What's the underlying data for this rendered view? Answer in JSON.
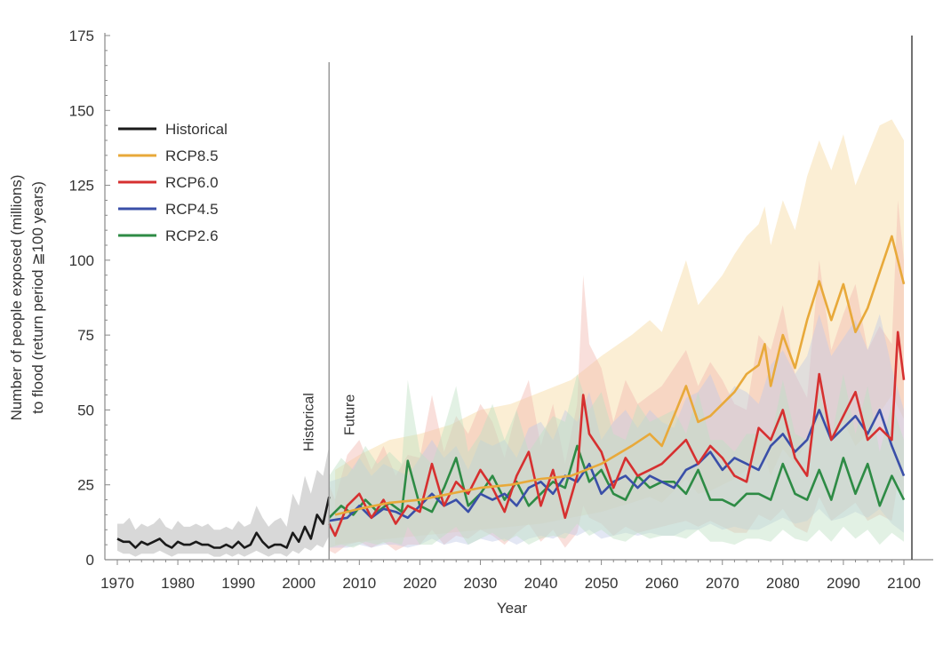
{
  "chart_data": {
    "type": "line",
    "xlabel": "Year",
    "ylabel_line1": "Number of people exposed (millions)",
    "ylabel_line2": "to flood (return period ≧100 years)",
    "xlim": [
      1970,
      2100
    ],
    "ylim": [
      0,
      175
    ],
    "xticks": [
      "1970",
      "1980",
      "1990",
      "2000",
      "2010",
      "2020",
      "2030",
      "2040",
      "2050",
      "2060",
      "2070",
      "2080",
      "2090",
      "2100"
    ],
    "yticks": [
      "0",
      "25",
      "50",
      "75",
      "100",
      "125",
      "150",
      "175"
    ],
    "divider_year": 2005,
    "period_labels": {
      "historical": "Historical",
      "future": "Future"
    },
    "legend_position": "upper-left",
    "series": [
      {
        "name": "Historical",
        "color": "#1a1a1a",
        "band_color": "#c8c8c8",
        "x": [
          1970,
          1971,
          1972,
          1973,
          1974,
          1975,
          1976,
          1977,
          1978,
          1979,
          1980,
          1981,
          1982,
          1983,
          1984,
          1985,
          1986,
          1987,
          1988,
          1989,
          1990,
          1991,
          1992,
          1993,
          1994,
          1995,
          1996,
          1997,
          1998,
          1999,
          2000,
          2001,
          2002,
          2003,
          2004,
          2005
        ],
        "y": [
          7,
          6,
          6,
          4,
          6,
          5,
          6,
          7,
          5,
          4,
          6,
          5,
          5,
          6,
          5,
          5,
          4,
          4,
          5,
          4,
          6,
          4,
          5,
          9,
          6,
          4,
          5,
          5,
          4,
          9,
          6,
          11,
          7,
          15,
          12,
          21
        ],
        "lower": [
          3,
          2,
          2,
          1,
          2,
          2,
          2,
          3,
          2,
          1,
          2,
          2,
          2,
          2,
          2,
          2,
          1,
          1,
          2,
          1,
          2,
          1,
          2,
          3,
          2,
          1,
          2,
          2,
          1,
          3,
          2,
          4,
          3,
          5,
          4,
          8
        ],
        "upper": [
          12,
          12,
          14,
          10,
          12,
          11,
          12,
          14,
          11,
          10,
          13,
          11,
          11,
          12,
          11,
          12,
          10,
          10,
          11,
          10,
          13,
          11,
          12,
          18,
          14,
          11,
          13,
          14,
          11,
          22,
          18,
          28,
          22,
          30,
          28,
          38
        ]
      },
      {
        "name": "RCP8.5",
        "color": "#e8a93a",
        "band_color": "#f7d9a0",
        "x": [
          2006,
          2010,
          2015,
          2020,
          2025,
          2030,
          2035,
          2040,
          2045,
          2050,
          2055,
          2058,
          2060,
          2062,
          2064,
          2066,
          2068,
          2070,
          2072,
          2074,
          2076,
          2077,
          2078,
          2080,
          2082,
          2084,
          2086,
          2088,
          2090,
          2092,
          2094,
          2096,
          2098,
          2100
        ],
        "y": [
          15,
          17,
          19,
          20,
          22,
          24,
          25,
          27,
          28,
          32,
          38,
          42,
          38,
          48,
          58,
          46,
          48,
          52,
          56,
          62,
          65,
          72,
          58,
          75,
          64,
          80,
          93,
          80,
          92,
          76,
          84,
          96,
          108,
          92
        ],
        "lower": [
          5,
          6,
          7,
          8,
          9,
          10,
          11,
          12,
          14,
          16,
          19,
          21,
          19,
          23,
          27,
          22,
          23,
          25,
          27,
          30,
          32,
          35,
          28,
          37,
          32,
          40,
          47,
          40,
          46,
          38,
          42,
          49,
          55,
          47
        ],
        "upper": [
          30,
          35,
          40,
          42,
          45,
          50,
          52,
          56,
          60,
          68,
          75,
          80,
          76,
          88,
          100,
          85,
          90,
          95,
          102,
          108,
          112,
          118,
          105,
          120,
          110,
          128,
          140,
          130,
          142,
          125,
          135,
          145,
          147,
          140
        ]
      },
      {
        "name": "RCP6.0",
        "color": "#d63030",
        "band_color": "#f1b9b0",
        "x": [
          2005,
          2006,
          2008,
          2010,
          2012,
          2014,
          2016,
          2018,
          2020,
          2022,
          2024,
          2026,
          2028,
          2030,
          2032,
          2034,
          2036,
          2038,
          2040,
          2042,
          2044,
          2046,
          2047,
          2048,
          2050,
          2052,
          2054,
          2056,
          2058,
          2060,
          2062,
          2064,
          2066,
          2068,
          2070,
          2072,
          2074,
          2076,
          2078,
          2080,
          2082,
          2084,
          2086,
          2088,
          2090,
          2092,
          2094,
          2096,
          2098,
          2099,
          2100
        ],
        "y": [
          12,
          8,
          18,
          22,
          14,
          20,
          12,
          18,
          16,
          32,
          18,
          26,
          22,
          30,
          24,
          16,
          28,
          36,
          18,
          30,
          14,
          28,
          55,
          42,
          36,
          24,
          34,
          28,
          30,
          32,
          36,
          40,
          32,
          38,
          34,
          28,
          26,
          44,
          40,
          50,
          34,
          28,
          62,
          40,
          48,
          56,
          40,
          44,
          40,
          76,
          60
        ],
        "lower": [
          3,
          2,
          5,
          6,
          4,
          6,
          3,
          5,
          5,
          10,
          5,
          8,
          7,
          10,
          8,
          5,
          9,
          12,
          6,
          10,
          4,
          9,
          18,
          14,
          12,
          8,
          11,
          9,
          10,
          11,
          12,
          13,
          11,
          13,
          11,
          9,
          9,
          15,
          13,
          17,
          11,
          9,
          21,
          13,
          16,
          19,
          13,
          15,
          13,
          26,
          20
        ],
        "upper": [
          25,
          20,
          35,
          40,
          30,
          38,
          28,
          35,
          34,
          55,
          36,
          48,
          42,
          52,
          46,
          34,
          50,
          60,
          38,
          52,
          32,
          52,
          95,
          72,
          64,
          46,
          60,
          52,
          55,
          58,
          64,
          70,
          58,
          66,
          60,
          52,
          50,
          75,
          70,
          85,
          62,
          54,
          100,
          70,
          82,
          92,
          70,
          78,
          72,
          120,
          100
        ]
      },
      {
        "name": "RCP4.5",
        "color": "#3a4fa8",
        "band_color": "#c2c9e6",
        "x": [
          2005,
          2008,
          2010,
          2012,
          2014,
          2016,
          2018,
          2020,
          2022,
          2024,
          2026,
          2028,
          2030,
          2032,
          2034,
          2036,
          2038,
          2040,
          2042,
          2044,
          2046,
          2048,
          2050,
          2052,
          2054,
          2056,
          2058,
          2060,
          2062,
          2064,
          2066,
          2068,
          2070,
          2072,
          2074,
          2076,
          2078,
          2080,
          2082,
          2084,
          2086,
          2088,
          2090,
          2092,
          2094,
          2096,
          2098,
          2100
        ],
        "y": [
          13,
          14,
          18,
          14,
          17,
          16,
          14,
          18,
          22,
          18,
          20,
          16,
          22,
          20,
          22,
          18,
          24,
          26,
          22,
          28,
          26,
          32,
          22,
          26,
          28,
          24,
          28,
          26,
          24,
          30,
          32,
          36,
          30,
          34,
          32,
          30,
          38,
          42,
          36,
          40,
          50,
          40,
          44,
          48,
          42,
          50,
          38,
          28
        ],
        "lower": [
          4,
          4,
          5,
          4,
          5,
          5,
          4,
          5,
          7,
          5,
          6,
          5,
          7,
          6,
          7,
          5,
          7,
          8,
          7,
          9,
          8,
          10,
          7,
          8,
          9,
          8,
          9,
          8,
          8,
          10,
          10,
          12,
          10,
          11,
          10,
          10,
          12,
          14,
          12,
          13,
          17,
          13,
          14,
          16,
          14,
          17,
          12,
          9
        ],
        "upper": [
          26,
          28,
          34,
          28,
          32,
          30,
          28,
          34,
          40,
          34,
          38,
          30,
          40,
          38,
          40,
          34,
          44,
          46,
          40,
          50,
          46,
          56,
          40,
          46,
          50,
          44,
          50,
          46,
          44,
          54,
          56,
          62,
          52,
          58,
          56,
          52,
          65,
          70,
          62,
          68,
          82,
          68,
          74,
          80,
          70,
          82,
          64,
          50
        ]
      },
      {
        "name": "RCP2.6",
        "color": "#2e8b45",
        "band_color": "#bfdfc4",
        "x": [
          2005,
          2007,
          2009,
          2011,
          2013,
          2015,
          2017,
          2018,
          2020,
          2022,
          2024,
          2026,
          2028,
          2030,
          2032,
          2034,
          2036,
          2038,
          2040,
          2042,
          2044,
          2046,
          2048,
          2050,
          2052,
          2054,
          2056,
          2058,
          2060,
          2062,
          2064,
          2066,
          2068,
          2070,
          2072,
          2074,
          2076,
          2078,
          2080,
          2082,
          2084,
          2086,
          2088,
          2090,
          2092,
          2094,
          2096,
          2098,
          2100
        ],
        "y": [
          14,
          18,
          15,
          20,
          16,
          19,
          16,
          33,
          18,
          16,
          24,
          34,
          18,
          22,
          28,
          20,
          26,
          18,
          22,
          26,
          24,
          38,
          26,
          30,
          22,
          20,
          28,
          24,
          26,
          26,
          22,
          30,
          20,
          20,
          18,
          22,
          22,
          20,
          32,
          22,
          20,
          30,
          20,
          34,
          22,
          32,
          18,
          28,
          20
        ],
        "lower": [
          4,
          5,
          4,
          6,
          5,
          6,
          5,
          11,
          5,
          5,
          8,
          11,
          5,
          7,
          9,
          6,
          8,
          5,
          7,
          8,
          7,
          12,
          8,
          10,
          7,
          6,
          9,
          7,
          8,
          8,
          7,
          10,
          6,
          6,
          5,
          7,
          7,
          6,
          10,
          7,
          6,
          10,
          6,
          11,
          7,
          10,
          5,
          9,
          6
        ],
        "upper": [
          28,
          34,
          30,
          38,
          32,
          36,
          32,
          60,
          36,
          32,
          44,
          58,
          36,
          42,
          52,
          40,
          50,
          36,
          42,
          48,
          46,
          62,
          50,
          56,
          42,
          40,
          52,
          46,
          48,
          50,
          42,
          56,
          40,
          40,
          36,
          42,
          42,
          40,
          60,
          42,
          40,
          56,
          40,
          62,
          42,
          58,
          36,
          52,
          40
        ]
      }
    ]
  }
}
